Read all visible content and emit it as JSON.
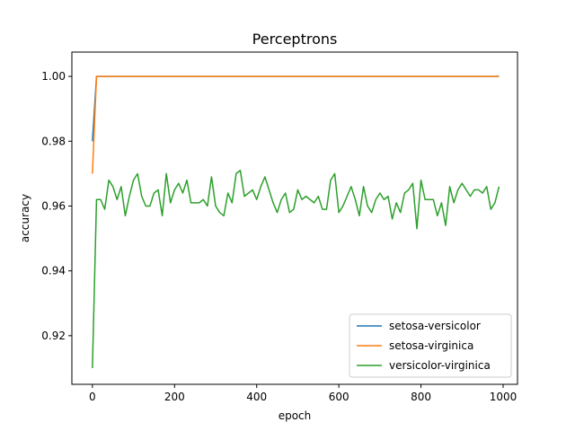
{
  "chart_data": {
    "type": "line",
    "title": "Perceptrons",
    "xlabel": "epoch",
    "ylabel": "accuracy",
    "xlim": [
      -50,
      1035
    ],
    "ylim": [
      0.905,
      1.0075
    ],
    "xticks": [
      0,
      200,
      400,
      600,
      800,
      1000
    ],
    "xtick_labels": [
      "0",
      "200",
      "400",
      "600",
      "800",
      "1000"
    ],
    "yticks": [
      0.92,
      0.94,
      0.96,
      0.98,
      1.0
    ],
    "ytick_labels": [
      "0.92",
      "0.94",
      "0.96",
      "0.98",
      "1.00"
    ],
    "grid": false,
    "legend_position": "lower-right",
    "x": [
      0,
      10,
      20,
      30,
      40,
      50,
      60,
      70,
      80,
      90,
      100,
      110,
      120,
      130,
      140,
      150,
      160,
      170,
      180,
      190,
      200,
      210,
      220,
      230,
      240,
      250,
      260,
      270,
      280,
      290,
      300,
      310,
      320,
      330,
      340,
      350,
      360,
      370,
      380,
      390,
      400,
      410,
      420,
      430,
      440,
      450,
      460,
      470,
      480,
      490,
      500,
      510,
      520,
      530,
      540,
      550,
      560,
      570,
      580,
      590,
      600,
      610,
      620,
      630,
      640,
      650,
      660,
      670,
      680,
      690,
      700,
      710,
      720,
      730,
      740,
      750,
      760,
      770,
      780,
      790,
      800,
      810,
      820,
      830,
      840,
      850,
      860,
      870,
      880,
      890,
      900,
      910,
      920,
      930,
      940,
      950,
      960,
      970,
      980,
      990
    ],
    "series": [
      {
        "name": "setosa-versicolor",
        "color": "#1f77b4",
        "values": [
          0.98,
          1,
          1,
          1,
          1,
          1,
          1,
          1,
          1,
          1,
          1,
          1,
          1,
          1,
          1,
          1,
          1,
          1,
          1,
          1,
          1,
          1,
          1,
          1,
          1,
          1,
          1,
          1,
          1,
          1,
          1,
          1,
          1,
          1,
          1,
          1,
          1,
          1,
          1,
          1,
          1,
          1,
          1,
          1,
          1,
          1,
          1,
          1,
          1,
          1,
          1,
          1,
          1,
          1,
          1,
          1,
          1,
          1,
          1,
          1,
          1,
          1,
          1,
          1,
          1,
          1,
          1,
          1,
          1,
          1,
          1,
          1,
          1,
          1,
          1,
          1,
          1,
          1,
          1,
          1,
          1,
          1,
          1,
          1,
          1,
          1,
          1,
          1,
          1,
          1,
          1,
          1,
          1,
          1,
          1,
          1,
          1,
          1,
          1,
          1
        ]
      },
      {
        "name": "setosa-virginica",
        "color": "#ff7f0e",
        "values": [
          0.97,
          1,
          1,
          1,
          1,
          1,
          1,
          1,
          1,
          1,
          1,
          1,
          1,
          1,
          1,
          1,
          1,
          1,
          1,
          1,
          1,
          1,
          1,
          1,
          1,
          1,
          1,
          1,
          1,
          1,
          1,
          1,
          1,
          1,
          1,
          1,
          1,
          1,
          1,
          1,
          1,
          1,
          1,
          1,
          1,
          1,
          1,
          1,
          1,
          1,
          1,
          1,
          1,
          1,
          1,
          1,
          1,
          1,
          1,
          1,
          1,
          1,
          1,
          1,
          1,
          1,
          1,
          1,
          1,
          1,
          1,
          1,
          1,
          1,
          1,
          1,
          1,
          1,
          1,
          1,
          1,
          1,
          1,
          1,
          1,
          1,
          1,
          1,
          1,
          1,
          1,
          1,
          1,
          1,
          1,
          1,
          1,
          1,
          1,
          1
        ]
      },
      {
        "name": "versicolor-virginica",
        "color": "#2ca02c",
        "values": [
          0.91,
          0.962,
          0.962,
          0.959,
          0.968,
          0.966,
          0.962,
          0.966,
          0.957,
          0.963,
          0.968,
          0.97,
          0.963,
          0.96,
          0.96,
          0.964,
          0.965,
          0.957,
          0.97,
          0.961,
          0.965,
          0.967,
          0.964,
          0.968,
          0.961,
          0.961,
          0.961,
          0.962,
          0.96,
          0.969,
          0.96,
          0.958,
          0.957,
          0.964,
          0.961,
          0.97,
          0.971,
          0.963,
          0.964,
          0.965,
          0.962,
          0.966,
          0.969,
          0.965,
          0.961,
          0.958,
          0.962,
          0.964,
          0.958,
          0.959,
          0.965,
          0.962,
          0.963,
          0.962,
          0.961,
          0.963,
          0.959,
          0.959,
          0.968,
          0.97,
          0.958,
          0.96,
          0.963,
          0.966,
          0.962,
          0.957,
          0.966,
          0.96,
          0.958,
          0.962,
          0.964,
          0.962,
          0.963,
          0.956,
          0.961,
          0.958,
          0.964,
          0.965,
          0.967,
          0.953,
          0.968,
          0.962,
          0.962,
          0.962,
          0.957,
          0.961,
          0.954,
          0.966,
          0.961,
          0.965,
          0.967,
          0.965,
          0.963,
          0.965,
          0.965,
          0.964,
          0.966,
          0.959,
          0.961,
          0.966
        ]
      }
    ]
  }
}
